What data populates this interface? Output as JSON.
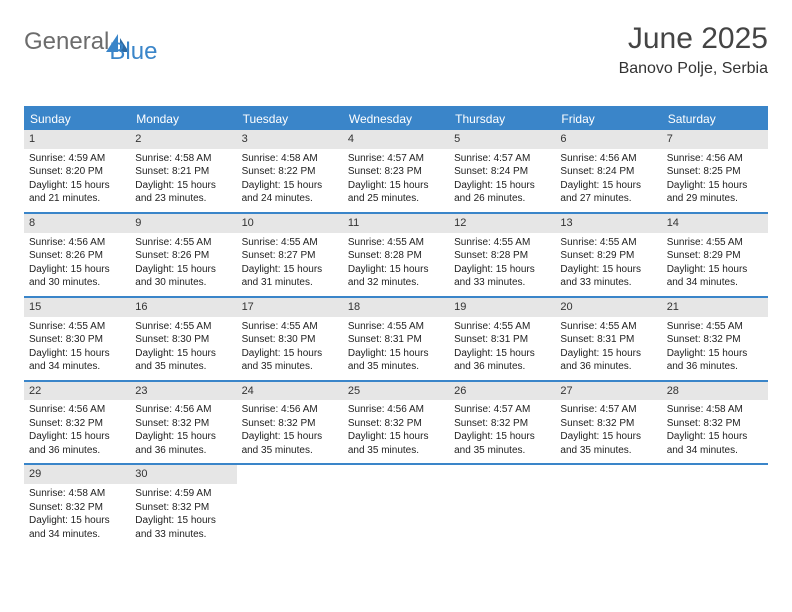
{
  "logo": {
    "text1": "General",
    "text2": "Blue"
  },
  "header": {
    "month": "June 2025",
    "location": "Banovo Polje, Serbia"
  },
  "colors": {
    "accent": "#3a85c9",
    "header_text": "#ffffff",
    "daynum_bg": "#e6e6e6",
    "text": "#222222"
  },
  "day_names": [
    "Sunday",
    "Monday",
    "Tuesday",
    "Wednesday",
    "Thursday",
    "Friday",
    "Saturday"
  ],
  "days": [
    {
      "n": "1",
      "sr": "4:59 AM",
      "ss": "8:20 PM",
      "dl": "15 hours and 21 minutes."
    },
    {
      "n": "2",
      "sr": "4:58 AM",
      "ss": "8:21 PM",
      "dl": "15 hours and 23 minutes."
    },
    {
      "n": "3",
      "sr": "4:58 AM",
      "ss": "8:22 PM",
      "dl": "15 hours and 24 minutes."
    },
    {
      "n": "4",
      "sr": "4:57 AM",
      "ss": "8:23 PM",
      "dl": "15 hours and 25 minutes."
    },
    {
      "n": "5",
      "sr": "4:57 AM",
      "ss": "8:24 PM",
      "dl": "15 hours and 26 minutes."
    },
    {
      "n": "6",
      "sr": "4:56 AM",
      "ss": "8:24 PM",
      "dl": "15 hours and 27 minutes."
    },
    {
      "n": "7",
      "sr": "4:56 AM",
      "ss": "8:25 PM",
      "dl": "15 hours and 29 minutes."
    },
    {
      "n": "8",
      "sr": "4:56 AM",
      "ss": "8:26 PM",
      "dl": "15 hours and 30 minutes."
    },
    {
      "n": "9",
      "sr": "4:55 AM",
      "ss": "8:26 PM",
      "dl": "15 hours and 30 minutes."
    },
    {
      "n": "10",
      "sr": "4:55 AM",
      "ss": "8:27 PM",
      "dl": "15 hours and 31 minutes."
    },
    {
      "n": "11",
      "sr": "4:55 AM",
      "ss": "8:28 PM",
      "dl": "15 hours and 32 minutes."
    },
    {
      "n": "12",
      "sr": "4:55 AM",
      "ss": "8:28 PM",
      "dl": "15 hours and 33 minutes."
    },
    {
      "n": "13",
      "sr": "4:55 AM",
      "ss": "8:29 PM",
      "dl": "15 hours and 33 minutes."
    },
    {
      "n": "14",
      "sr": "4:55 AM",
      "ss": "8:29 PM",
      "dl": "15 hours and 34 minutes."
    },
    {
      "n": "15",
      "sr": "4:55 AM",
      "ss": "8:30 PM",
      "dl": "15 hours and 34 minutes."
    },
    {
      "n": "16",
      "sr": "4:55 AM",
      "ss": "8:30 PM",
      "dl": "15 hours and 35 minutes."
    },
    {
      "n": "17",
      "sr": "4:55 AM",
      "ss": "8:30 PM",
      "dl": "15 hours and 35 minutes."
    },
    {
      "n": "18",
      "sr": "4:55 AM",
      "ss": "8:31 PM",
      "dl": "15 hours and 35 minutes."
    },
    {
      "n": "19",
      "sr": "4:55 AM",
      "ss": "8:31 PM",
      "dl": "15 hours and 36 minutes."
    },
    {
      "n": "20",
      "sr": "4:55 AM",
      "ss": "8:31 PM",
      "dl": "15 hours and 36 minutes."
    },
    {
      "n": "21",
      "sr": "4:55 AM",
      "ss": "8:32 PM",
      "dl": "15 hours and 36 minutes."
    },
    {
      "n": "22",
      "sr": "4:56 AM",
      "ss": "8:32 PM",
      "dl": "15 hours and 36 minutes."
    },
    {
      "n": "23",
      "sr": "4:56 AM",
      "ss": "8:32 PM",
      "dl": "15 hours and 36 minutes."
    },
    {
      "n": "24",
      "sr": "4:56 AM",
      "ss": "8:32 PM",
      "dl": "15 hours and 35 minutes."
    },
    {
      "n": "25",
      "sr": "4:56 AM",
      "ss": "8:32 PM",
      "dl": "15 hours and 35 minutes."
    },
    {
      "n": "26",
      "sr": "4:57 AM",
      "ss": "8:32 PM",
      "dl": "15 hours and 35 minutes."
    },
    {
      "n": "27",
      "sr": "4:57 AM",
      "ss": "8:32 PM",
      "dl": "15 hours and 35 minutes."
    },
    {
      "n": "28",
      "sr": "4:58 AM",
      "ss": "8:32 PM",
      "dl": "15 hours and 34 minutes."
    },
    {
      "n": "29",
      "sr": "4:58 AM",
      "ss": "8:32 PM",
      "dl": "15 hours and 34 minutes."
    },
    {
      "n": "30",
      "sr": "4:59 AM",
      "ss": "8:32 PM",
      "dl": "15 hours and 33 minutes."
    }
  ],
  "labels": {
    "sunrise": "Sunrise:",
    "sunset": "Sunset:",
    "daylight": "Daylight:"
  },
  "layout": {
    "start_offset": 0,
    "total_cells": 35
  }
}
